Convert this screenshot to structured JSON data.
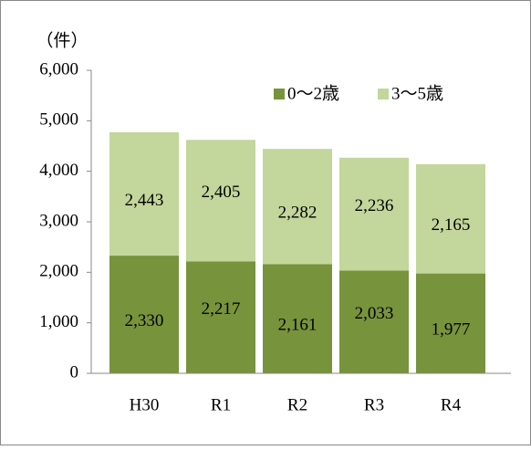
{
  "chart_data": {
    "type": "stacked_bar",
    "y_label": "（件）",
    "categories": [
      "H30",
      "R1",
      "R2",
      "R3",
      "R4"
    ],
    "series": [
      {
        "name": "0〜2歳",
        "color": "#77933c",
        "values": [
          2330,
          2217,
          2161,
          2033,
          1977
        ],
        "value_labels": [
          "2,330",
          "2,217",
          "2,161",
          "2,033",
          "1,977"
        ]
      },
      {
        "name": "3〜5歳",
        "color": "#c3d69b",
        "values": [
          2443,
          2405,
          2282,
          2236,
          2165
        ],
        "value_labels": [
          "2,443",
          "2,405",
          "2,282",
          "2,236",
          "2,165"
        ]
      }
    ],
    "ylim": [
      0,
      6000
    ],
    "yticks": [
      0,
      {
        "value": 1000,
        "label": "1,000"
      },
      {
        "value": 2000,
        "label": "2,000"
      },
      {
        "value": 3000,
        "label": "3,000"
      },
      {
        "value": 4000,
        "label": "4,000"
      },
      {
        "value": 5000,
        "label": "5,000"
      },
      {
        "value": 6000,
        "label": "6,000"
      }
    ],
    "legend": "top-right"
  }
}
